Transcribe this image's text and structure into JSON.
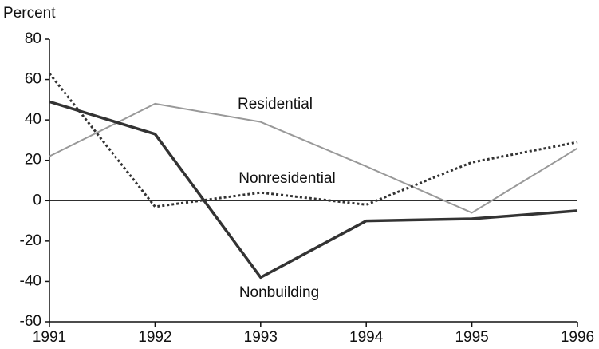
{
  "chart_data": {
    "type": "line",
    "axis_title": "Percent",
    "x": [
      1991,
      1992,
      1993,
      1994,
      1995,
      1996
    ],
    "xlim": [
      1991,
      1996
    ],
    "xticks": [
      1991,
      1992,
      1993,
      1994,
      1995,
      1996
    ],
    "ylim": [
      -60,
      80
    ],
    "yticks": [
      -60,
      -40,
      -20,
      0,
      20,
      40,
      60,
      80
    ],
    "series": [
      {
        "name": "Residential",
        "color": "#999999",
        "style": "solid",
        "values": [
          22,
          48,
          39,
          17,
          -6,
          26
        ]
      },
      {
        "name": "Nonresidential",
        "color": "#333333",
        "style": "dotted",
        "values": [
          63,
          -3,
          4,
          -2,
          19,
          29
        ]
      },
      {
        "name": "Nonbuilding",
        "color": "#333333",
        "style": "thick",
        "values": [
          49,
          33,
          -38,
          -10,
          -9,
          -5
        ]
      }
    ]
  }
}
